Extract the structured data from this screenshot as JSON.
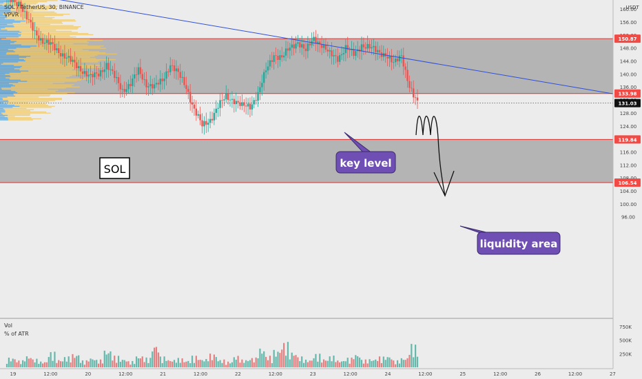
{
  "header": {
    "symbol_title": "SOL / TetherUS, 30, BINANCE",
    "indicator": "VPVR",
    "currency": "USDT",
    "vol_label": "Vol",
    "atr_label": "% of ATR"
  },
  "annotations": {
    "ticker_box": "SOL",
    "key_level": "key level",
    "liquidity_area": "liquidity area"
  },
  "price_tags": [
    {
      "value": 150.87,
      "label": "150.87",
      "kind": "red"
    },
    {
      "value": 133.98,
      "label": "133.98",
      "kind": "red"
    },
    {
      "value": 131.03,
      "label": "131.03",
      "kind": "black"
    },
    {
      "value": 119.84,
      "label": "119.84",
      "kind": "red"
    },
    {
      "value": 106.54,
      "label": "106.54",
      "kind": "red"
    }
  ],
  "chart_data": {
    "type": "candlestick",
    "title": "SOL / TetherUS, 30, BINANCE",
    "price_axis": {
      "range": [
        92,
        160
      ],
      "ticks": [
        96,
        100,
        104,
        108,
        112,
        116,
        120,
        124,
        128,
        132,
        136,
        140,
        144,
        148,
        152,
        156,
        160
      ],
      "tick_labels": [
        "96.00",
        "100.00",
        "104.00",
        "108.00",
        "112.00",
        "116.00",
        "",
        "124.00",
        "128.00",
        "132.00",
        "136.00",
        "140.00",
        "144.00",
        "148.00",
        "152.00",
        "156.00",
        "160.00"
      ]
    },
    "volume_axis": {
      "range": [
        0,
        800000
      ],
      "ticks": [
        250000,
        500000,
        750000
      ],
      "tick_labels": [
        "250K",
        "500K",
        "750K"
      ]
    },
    "time_axis": {
      "labels": [
        "19",
        "12:00",
        "20",
        "12:00",
        "21",
        "12:00",
        "22",
        "12:00",
        "23",
        "12:00",
        "24",
        "12:00",
        "25",
        "12:00",
        "26",
        "12:00",
        "27"
      ]
    },
    "zones": [
      {
        "name": "",
        "top": 150.87,
        "bottom": 133.98
      },
      {
        "name": "liquidity area",
        "top": 119.84,
        "bottom": 106.54
      }
    ],
    "trendline": {
      "from_price": 166.0,
      "to_price": 133.9
    },
    "current_price": 131.03,
    "price_path": [
      [
        0,
        163
      ],
      [
        6,
        162
      ],
      [
        10,
        157
      ],
      [
        14,
        153
      ],
      [
        18,
        150
      ],
      [
        22,
        149
      ],
      [
        26,
        147
      ],
      [
        30,
        145
      ],
      [
        34,
        143
      ],
      [
        38,
        141
      ],
      [
        42,
        139
      ],
      [
        46,
        140
      ],
      [
        50,
        143
      ],
      [
        54,
        139
      ],
      [
        58,
        135
      ],
      [
        62,
        137
      ],
      [
        66,
        141
      ],
      [
        70,
        137
      ],
      [
        74,
        136
      ],
      [
        78,
        138
      ],
      [
        82,
        143
      ],
      [
        86,
        140
      ],
      [
        90,
        136
      ],
      [
        94,
        129
      ],
      [
        98,
        124
      ],
      [
        102,
        126
      ],
      [
        106,
        130
      ],
      [
        110,
        133
      ],
      [
        114,
        132
      ],
      [
        118,
        130
      ],
      [
        122,
        130
      ],
      [
        126,
        134
      ],
      [
        130,
        141
      ],
      [
        134,
        146
      ],
      [
        138,
        145
      ],
      [
        142,
        148
      ],
      [
        146,
        150
      ],
      [
        150,
        147
      ],
      [
        154,
        151
      ],
      [
        158,
        149
      ],
      [
        162,
        146
      ],
      [
        166,
        145
      ],
      [
        170,
        148
      ],
      [
        174,
        146
      ],
      [
        178,
        149
      ],
      [
        182,
        148
      ],
      [
        186,
        147
      ],
      [
        190,
        146
      ],
      [
        194,
        143
      ],
      [
        198,
        146
      ],
      [
        202,
        136
      ],
      [
        204,
        133
      ],
      [
        206,
        131
      ]
    ],
    "volume_path": [
      0.25,
      0.18,
      0.3,
      0.22,
      0.15,
      0.4,
      0.2,
      0.28,
      0.35,
      0.18,
      0.25,
      0.2,
      0.45,
      0.3,
      0.22,
      0.16,
      0.3,
      0.25,
      0.6,
      0.28,
      0.2,
      0.24,
      0.18,
      0.3,
      0.22,
      0.35,
      0.2,
      0.15,
      0.3,
      0.2,
      0.25,
      0.5,
      0.3,
      0.45,
      0.65,
      0.4,
      0.28,
      0.2,
      0.35,
      0.22,
      0.3,
      0.18,
      0.25,
      0.35,
      0.2,
      0.22,
      0.28,
      0.3,
      0.18,
      0.25,
      0.6,
      0.4
    ]
  }
}
